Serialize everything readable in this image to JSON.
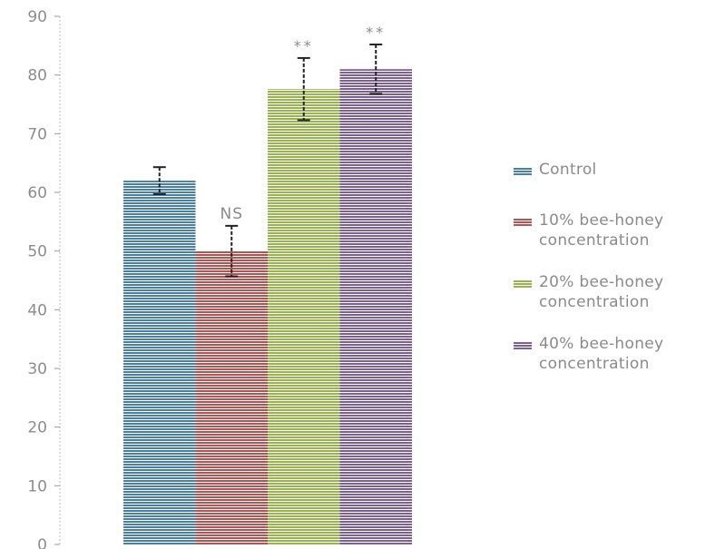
{
  "chart_data": {
    "type": "bar",
    "title": "",
    "xlabel": "",
    "ylabel": "",
    "ylim": [
      0,
      90
    ],
    "yticks": [
      0,
      10,
      20,
      30,
      40,
      50,
      60,
      70,
      80,
      90
    ],
    "ytick_labels": [
      "0",
      "10",
      "20",
      "30",
      "40",
      "50",
      "60",
      "70",
      "80",
      "90"
    ],
    "legend_position": "right",
    "series": [
      {
        "name": "Control",
        "value": 62,
        "error": 2.3,
        "annotation": "",
        "color": "#4a7fa8"
      },
      {
        "name": "10% bee-honey concentration",
        "value": 50,
        "error": 4.3,
        "annotation": "NS",
        "color": "#b25451"
      },
      {
        "name": "20% bee-honey concentration",
        "value": 77.6,
        "error": 5.3,
        "annotation": "**",
        "color": "#97b44e"
      },
      {
        "name": "40% bee-honey concentration",
        "value": 81,
        "error": 4.2,
        "annotation": "**",
        "color": "#7e6096"
      }
    ]
  }
}
